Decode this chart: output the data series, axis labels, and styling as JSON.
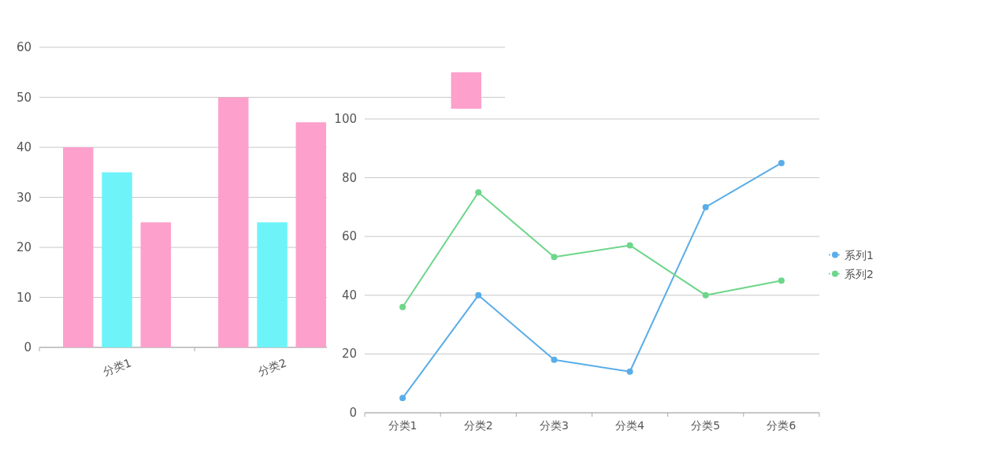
{
  "chart_data": [
    {
      "type": "bar",
      "categories": [
        "分类1",
        "分类2",
        null
      ],
      "series": [
        {
          "color": "#fda0cc",
          "values": [
            40,
            50,
            null
          ]
        },
        {
          "color": "#6ef3f9",
          "values": [
            35,
            25,
            null
          ]
        },
        {
          "color": "#fda0cc",
          "values": [
            25,
            45,
            55
          ]
        }
      ],
      "ylim": [
        0,
        60
      ],
      "yticks": [
        0,
        10,
        20,
        30,
        40,
        50,
        60
      ],
      "grid": "y"
    },
    {
      "type": "line",
      "categories": [
        "分类1",
        "分类2",
        "分类3",
        "分类4",
        "分类5",
        "分类6"
      ],
      "series": [
        {
          "name": "系列1",
          "color": "#5aade8",
          "values": [
            5,
            40,
            18,
            14,
            70,
            85
          ]
        },
        {
          "name": "系列2",
          "color": "#6dd68a",
          "values": [
            36,
            75,
            53,
            57,
            40,
            45
          ]
        }
      ],
      "ylim": [
        0,
        100
      ],
      "yticks": [
        0,
        20,
        40,
        60,
        80,
        100
      ],
      "grid": "y",
      "legend": "right",
      "marker": "circle"
    }
  ]
}
